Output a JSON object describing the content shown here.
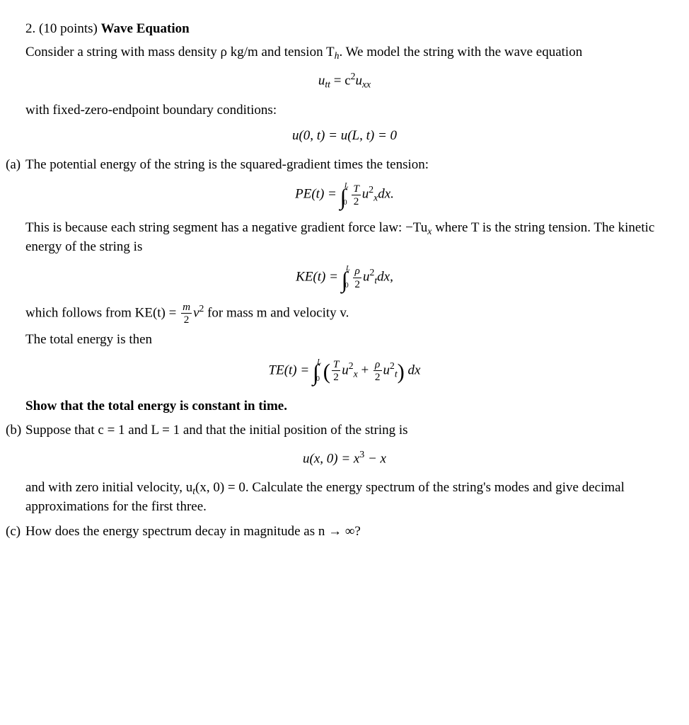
{
  "problem": {
    "number": "2.",
    "points": "(10 points)",
    "title": "Wave Equation",
    "intro1": "Consider a string with mass density ρ kg/m and tension T",
    "intro1_sub": "h",
    "intro1_tail": ". We model the string with the wave equation",
    "eq_wave_lhs": "u",
    "eq_wave_sub1": "tt",
    "eq_wave_eq": " = c",
    "eq_wave_sup": "2",
    "eq_wave_rhs": "u",
    "eq_wave_sub2": "xx",
    "bc_text": "with fixed-zero-endpoint boundary conditions:",
    "eq_bc": "u(0, t) = u(L, t) = 0",
    "parts": {
      "a": {
        "label": "(a)",
        "text1": "The potential energy of the string is the squared-gradient times the tension:",
        "pe_label": "PE(t) = ",
        "pe_int_top": "L",
        "pe_int_bot": "0",
        "pe_frac_num": "T",
        "pe_frac_den": "2",
        "pe_body": "u",
        "pe_sup": "2",
        "pe_sub": "x",
        "pe_dx": "dx.",
        "text2a": "This is because each string segment has a negative gradient force law: −Tu",
        "text2a_sub": "x",
        "text2a_tail": " where T is the string tension. The kinetic energy of the string is",
        "ke_label": "KE(t) = ",
        "ke_int_top": "L",
        "ke_int_bot": "0",
        "ke_frac_num": "ρ",
        "ke_frac_den": "2",
        "ke_body": "u",
        "ke_sup": "2",
        "ke_sub": "t",
        "ke_dx": "dx,",
        "text3a": "which follows from KE(t) = ",
        "text3_frac_num": "m",
        "text3_frac_den": "2",
        "text3b": "v",
        "text3b_sup": "2",
        "text3c": " for mass m and velocity v.",
        "text4": "The total energy is then",
        "te_label": "TE(t) = ",
        "te_int_top": "L",
        "te_int_bot": "0",
        "te_p1_num": "T",
        "te_p1_den": "2",
        "te_p1_body": "u",
        "te_p1_sup": "2",
        "te_p1_sub": "x",
        "te_plus": " + ",
        "te_p2_num": "ρ",
        "te_p2_den": "2",
        "te_p2_body": "u",
        "te_p2_sup": "2",
        "te_p2_sub": "t",
        "te_dx": " dx",
        "task": "Show that the total energy is constant in time."
      },
      "b": {
        "label": "(b)",
        "text1": "Suppose that c = 1 and L = 1 and that the initial position of the string is",
        "eq_ic_lhs": "u(x, 0) = x",
        "eq_ic_sup": "3",
        "eq_ic_tail": " − x",
        "text2a": "and with zero initial velocity, u",
        "text2a_sub": "t",
        "text2b": "(x, 0) = 0. Calculate the energy spectrum of the string's modes and give decimal approximations for the first three."
      },
      "c": {
        "label": "(c)",
        "text": "How does the energy spectrum decay in magnitude as n → ∞?"
      }
    }
  }
}
